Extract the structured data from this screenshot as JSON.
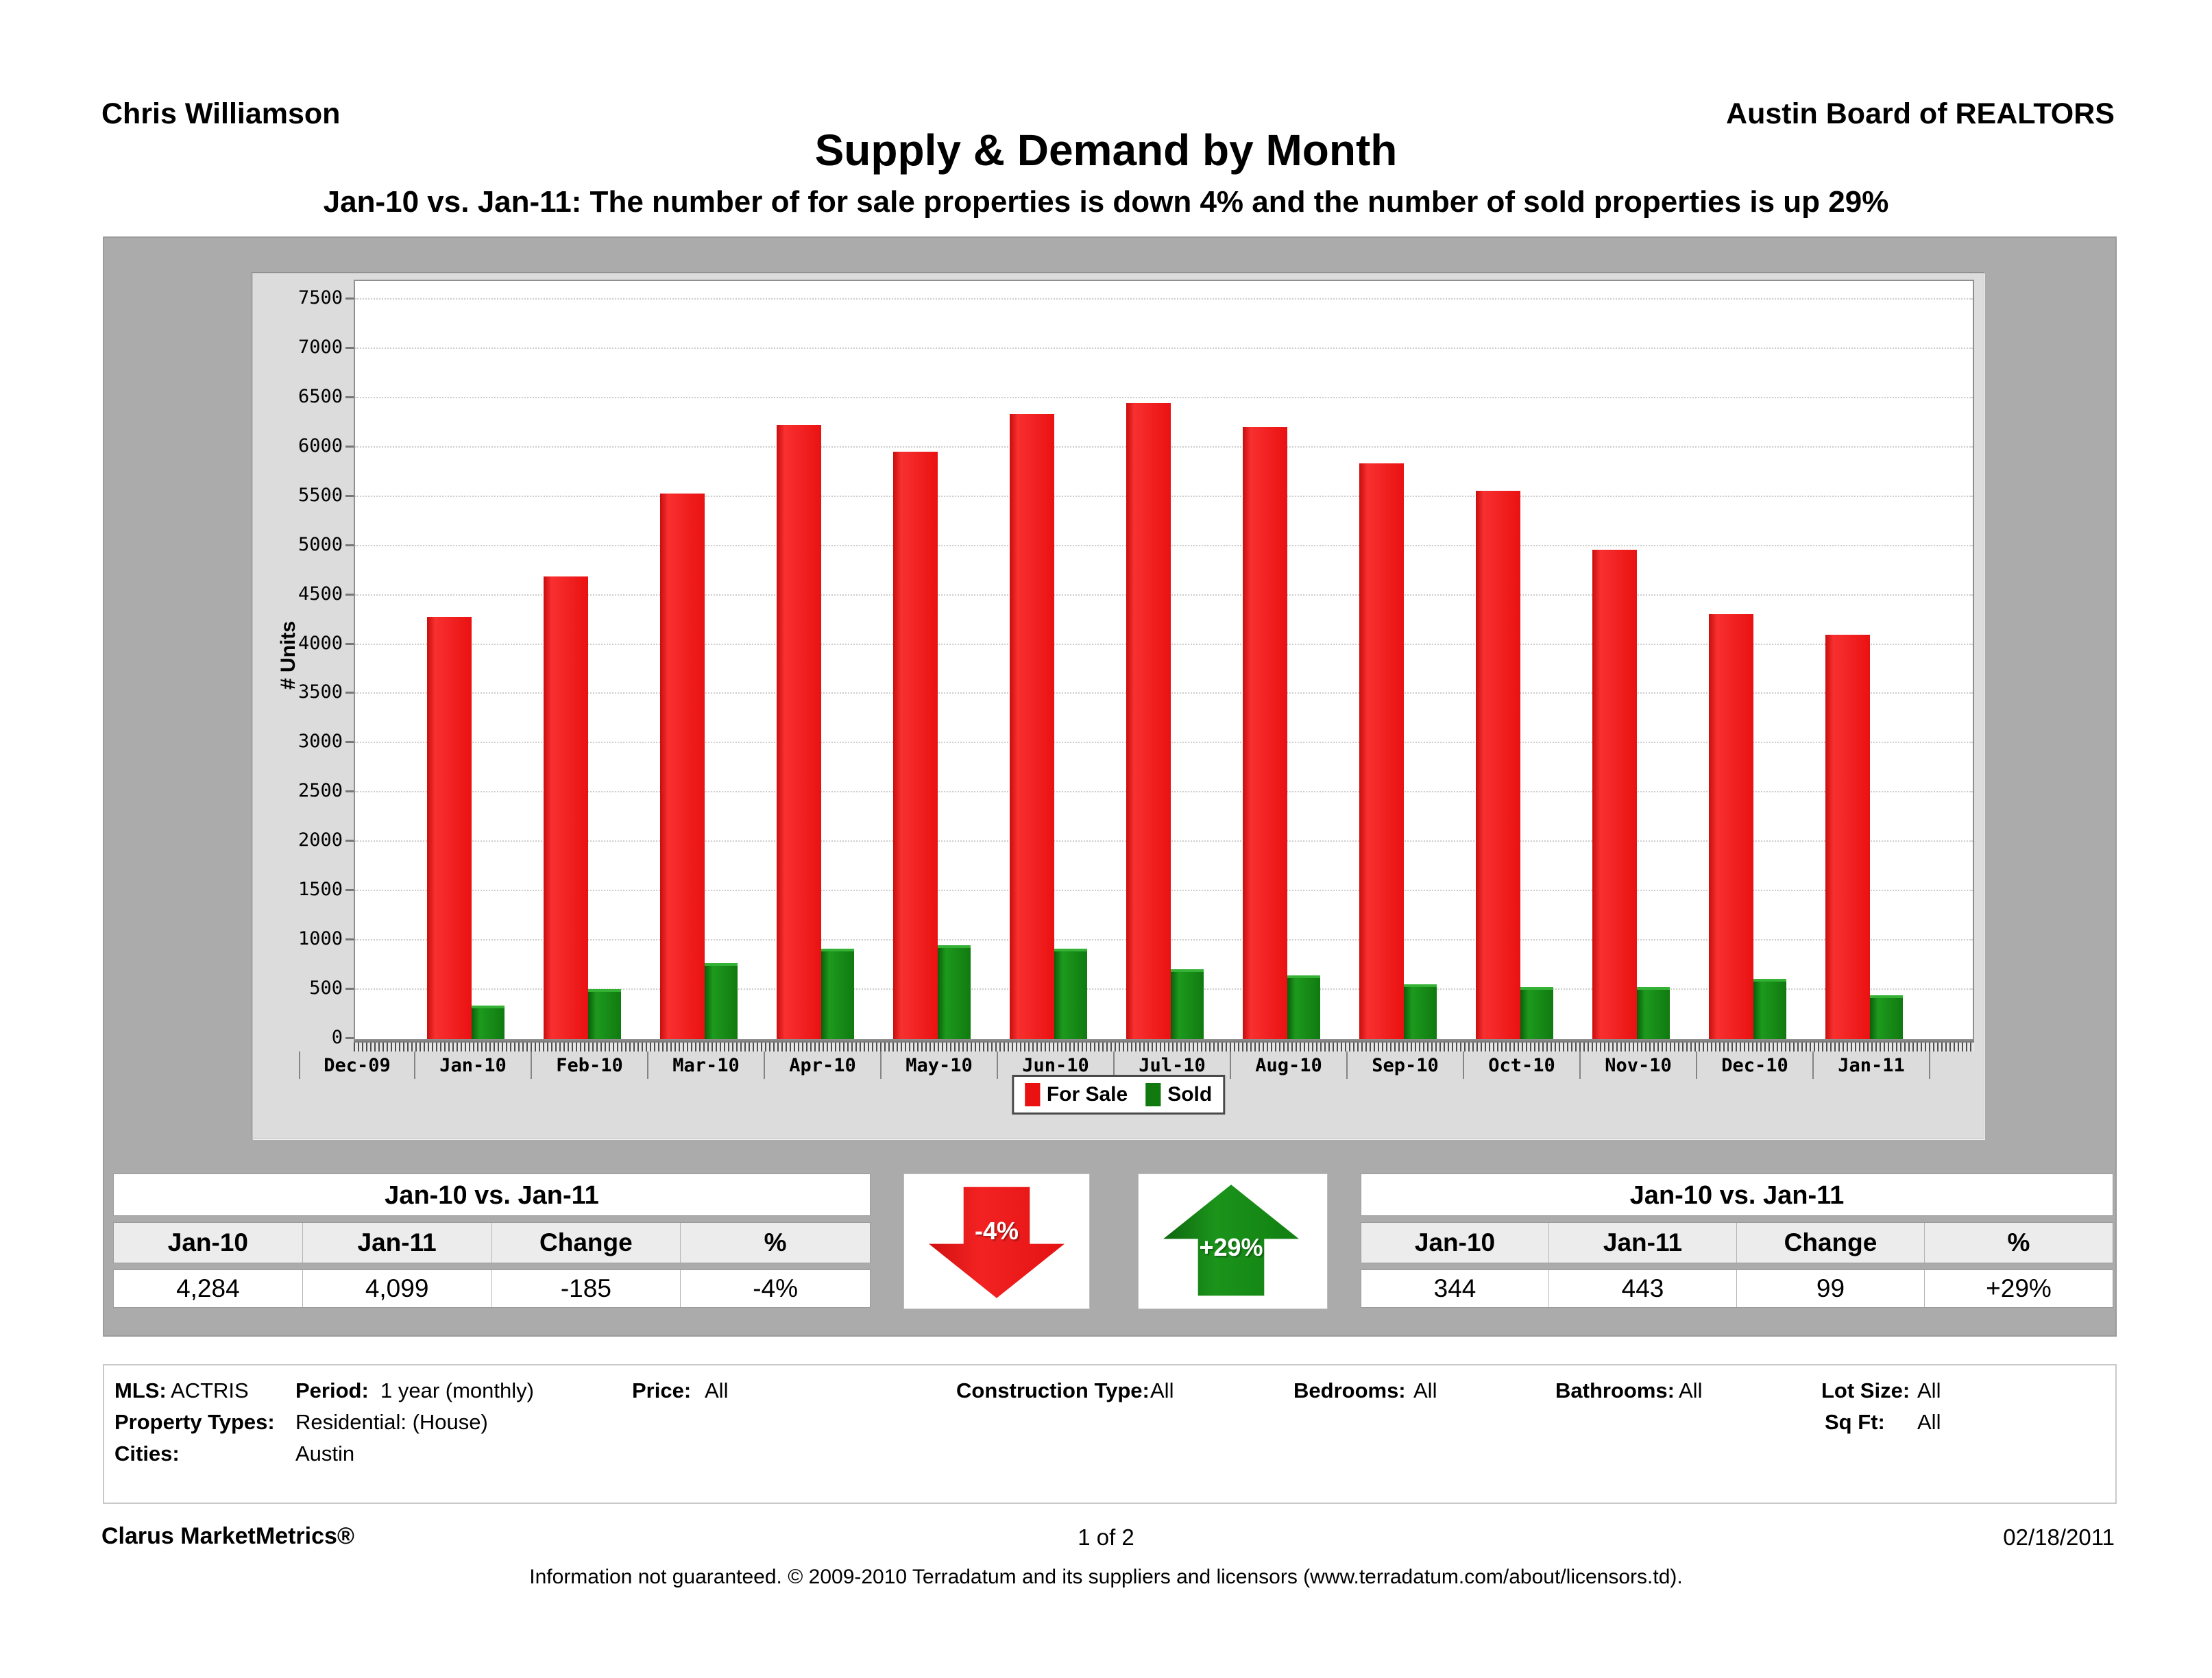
{
  "page": {
    "prepared_by": "Chris Williamson",
    "organization": "Austin Board of REALTORS",
    "title": "Supply & Demand by Month",
    "subtitle": "Jan-10 vs. Jan-11:  The number of for sale properties is down 4% and the number of sold properties is up 29%"
  },
  "chart_data": {
    "type": "bar",
    "title": "Supply & Demand by Month",
    "xlabel": "",
    "ylabel": "# Units",
    "ylim": [
      0,
      7500
    ],
    "ytick_step": 500,
    "grid": true,
    "legend_position": "bottom",
    "categories": [
      "Dec-09",
      "Jan-10",
      "Feb-10",
      "Mar-10",
      "Apr-10",
      "May-10",
      "Jun-10",
      "Jul-10",
      "Aug-10",
      "Sep-10",
      "Oct-10",
      "Nov-10",
      "Dec-10",
      "Jan-11"
    ],
    "series": [
      {
        "name": "For Sale",
        "color": "#ea1111",
        "values": [
          null,
          4284,
          4690,
          5530,
          6230,
          5960,
          6340,
          6450,
          6210,
          5840,
          5560,
          4960,
          4310,
          4099
        ]
      },
      {
        "name": "Sold",
        "color": "#107a10",
        "values": [
          null,
          344,
          510,
          770,
          915,
          955,
          915,
          710,
          645,
          555,
          530,
          525,
          610,
          443
        ]
      }
    ]
  },
  "summary_tables": {
    "for_sale": {
      "title": "Jan-10 vs. Jan-11",
      "headers": [
        "Jan-10",
        "Jan-11",
        "Change",
        "%"
      ],
      "values": [
        "4,284",
        "4,099",
        "-185",
        "-4%"
      ]
    },
    "sold": {
      "title": "Jan-10 vs. Jan-11",
      "headers": [
        "Jan-10",
        "Jan-11",
        "Change",
        "%"
      ],
      "values": [
        "344",
        "443",
        "99",
        "+29%"
      ]
    }
  },
  "indicators": {
    "for_sale": {
      "direction": "down",
      "label": "-4%",
      "color": "#ea1111"
    },
    "sold": {
      "direction": "up",
      "label": "+29%",
      "color": "#0f7c0f"
    }
  },
  "filters": {
    "items": [
      {
        "label": "MLS:",
        "value": "ACTRIS"
      },
      {
        "label": "Period:",
        "value": "1 year (monthly)"
      },
      {
        "label": "Price:",
        "value": "All"
      },
      {
        "label": "Construction Type:",
        "value": "All"
      },
      {
        "label": "Bedrooms:",
        "value": "All"
      },
      {
        "label": "Bathrooms:",
        "value": "All"
      },
      {
        "label": "Lot Size:",
        "value": "All"
      },
      {
        "label": "Property Types:",
        "value": "Residential: (House)"
      },
      {
        "label": "Sq Ft:",
        "value": "All"
      },
      {
        "label": "Cities:",
        "value": "Austin"
      }
    ]
  },
  "footer": {
    "brand": "Clarus MarketMetrics®",
    "page": "1 of 2",
    "date": "02/18/2011",
    "disclaimer": "Information not guaranteed.  © 2009-2010 Terradatum and its suppliers and licensors (www.terradatum.com/about/licensors.td)."
  }
}
